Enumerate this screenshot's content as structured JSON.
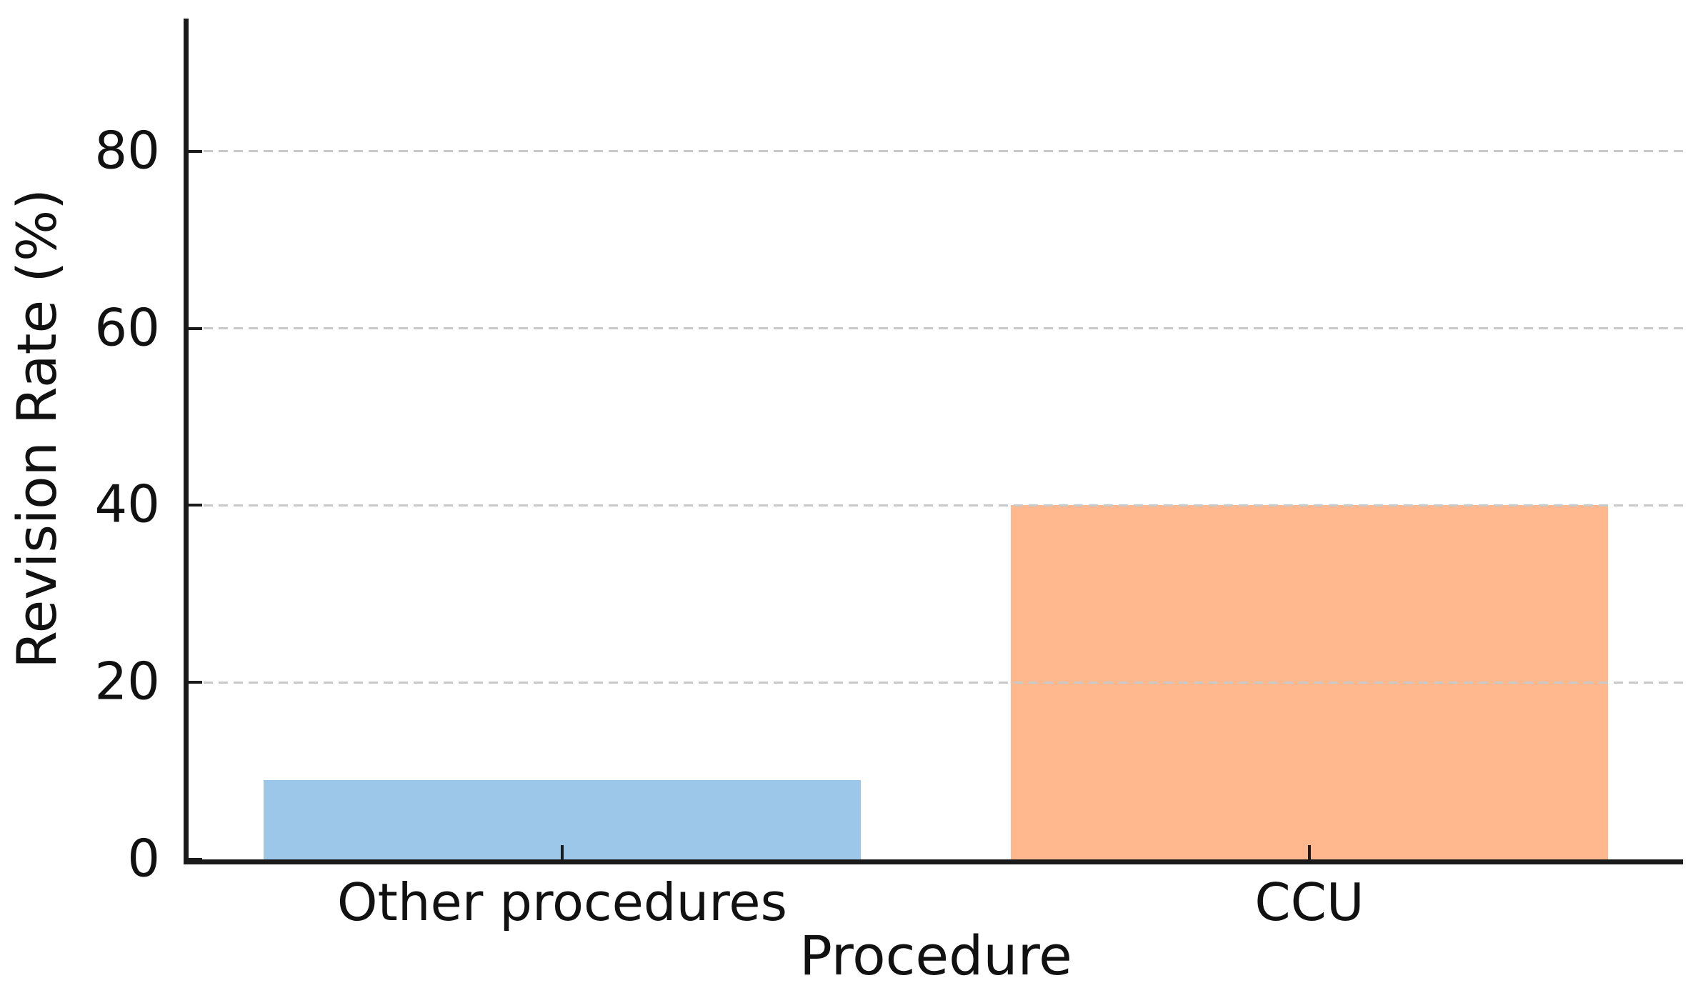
{
  "figure": {
    "background": "#ffffff",
    "text_color": "#111111",
    "spine_color": "#1a1a1a"
  },
  "chart_data": {
    "type": "bar",
    "categories": [
      "Other procedures",
      "CCU"
    ],
    "values": [
      9,
      40
    ],
    "bar_colors": [
      "#9dc7e8",
      "#ffb88e"
    ],
    "title": "",
    "xlabel": "Procedure",
    "ylabel": "Revision Rate (%)",
    "ylim": [
      0,
      95
    ],
    "yticks": [
      0,
      20,
      40,
      60,
      80
    ],
    "bar_width_fraction": 0.8,
    "grid": {
      "axis": "y",
      "style": "dashed",
      "color": "#c9c9c9",
      "drawn_above_bars": true
    },
    "tick_direction": "in",
    "legend": "none"
  }
}
